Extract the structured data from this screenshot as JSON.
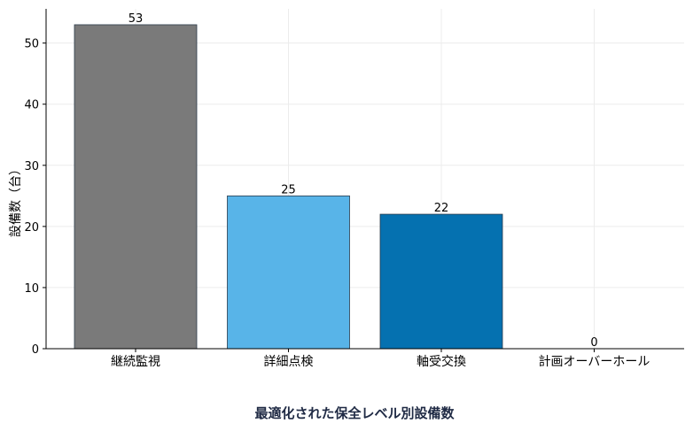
{
  "chart_data": {
    "type": "bar",
    "categories": [
      "継続監視",
      "詳細点検",
      "軸受交換",
      "計画オーバーホール"
    ],
    "values": [
      53,
      25,
      22,
      0
    ],
    "colors": [
      "#7a7a7a",
      "#58b4e8",
      "#0571b0",
      "#0571b0"
    ],
    "data_labels": [
      "53",
      "25",
      "22",
      "0"
    ],
    "ylabel": "設備数（台）",
    "xlabel": "",
    "ylim": [
      0,
      55.6
    ],
    "yticks": [
      0,
      10,
      20,
      30,
      40,
      50
    ],
    "grid": true,
    "legend": "none"
  },
  "caption": "最適化された保全レベル別設備数"
}
